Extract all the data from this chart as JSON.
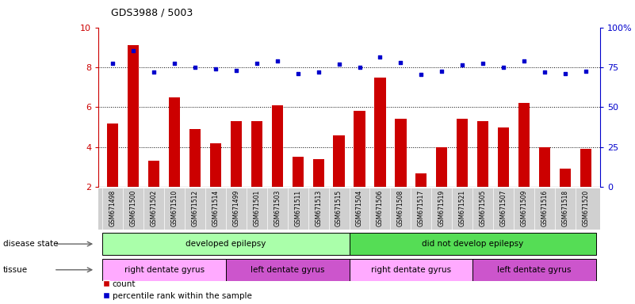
{
  "title": "GDS3988 / 5003",
  "samples": [
    "GSM671498",
    "GSM671500",
    "GSM671502",
    "GSM671510",
    "GSM671512",
    "GSM671514",
    "GSM671499",
    "GSM671501",
    "GSM671503",
    "GSM671511",
    "GSM671513",
    "GSM671515",
    "GSM671504",
    "GSM671506",
    "GSM671508",
    "GSM671517",
    "GSM671519",
    "GSM671521",
    "GSM671505",
    "GSM671507",
    "GSM671509",
    "GSM671516",
    "GSM671518",
    "GSM671520"
  ],
  "bar_values": [
    5.2,
    9.1,
    3.3,
    6.5,
    4.9,
    4.2,
    5.3,
    5.3,
    6.1,
    3.5,
    3.4,
    4.6,
    5.8,
    7.5,
    5.4,
    2.7,
    4.0,
    5.4,
    5.3,
    5.0,
    6.2,
    4.0,
    2.9,
    3.9
  ],
  "dot_values": [
    8.2,
    8.85,
    7.75,
    8.2,
    8.0,
    7.9,
    7.85,
    8.2,
    8.3,
    7.7,
    7.75,
    8.15,
    8.0,
    8.5,
    8.25,
    7.65,
    7.8,
    8.1,
    8.2,
    8.0,
    8.3,
    7.75,
    7.7,
    7.8
  ],
  "ylim_left": [
    2,
    10
  ],
  "ylim_right": [
    0,
    100
  ],
  "yticks_left": [
    2,
    4,
    6,
    8,
    10
  ],
  "yticks_right": [
    0,
    25,
    50,
    75,
    100
  ],
  "ytick_right_labels": [
    "0",
    "25",
    "50",
    "75",
    "100%"
  ],
  "bar_color": "#cc0000",
  "dot_color": "#0000cc",
  "grid_lines": [
    4,
    6,
    8
  ],
  "disease_groups": [
    {
      "label": "developed epilepsy",
      "start": 0,
      "end": 12,
      "color": "#aaffaa"
    },
    {
      "label": "did not develop epilepsy",
      "start": 12,
      "end": 24,
      "color": "#55dd55"
    }
  ],
  "tissue_groups": [
    {
      "label": "right dentate gyrus",
      "start": 0,
      "end": 6,
      "color": "#ffaaff"
    },
    {
      "label": "left dentate gyrus",
      "start": 6,
      "end": 12,
      "color": "#cc55cc"
    },
    {
      "label": "right dentate gyrus",
      "start": 12,
      "end": 18,
      "color": "#ffaaff"
    },
    {
      "label": "left dentate gyrus",
      "start": 18,
      "end": 24,
      "color": "#cc55cc"
    }
  ],
  "legend_count_label": "count",
  "legend_pct_label": "percentile rank within the sample",
  "disease_label": "disease state",
  "tissue_label": "tissue",
  "bg_color": "#ffffff",
  "bar_bottom": 2.0,
  "label_bg_color": "#d0d0d0"
}
